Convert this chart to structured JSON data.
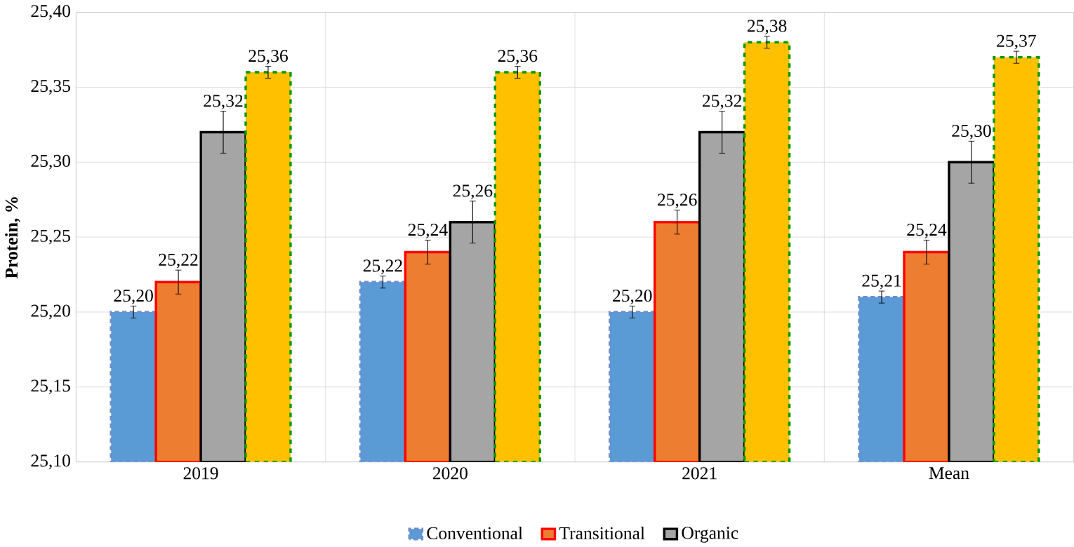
{
  "chart_data": {
    "type": "bar",
    "ylabel": "Protein, %",
    "categories": [
      "2019",
      "2020",
      "2021",
      "Mean"
    ],
    "series": [
      {
        "name": "Conventional",
        "color": "#5b9bd5",
        "values": [
          25.2,
          25.22,
          25.2,
          25.21
        ],
        "errors": [
          0.004,
          0.004,
          0.004,
          0.004
        ],
        "value_labels": [
          "25,20",
          "25,22",
          "25,20",
          "25,21"
        ]
      },
      {
        "name": "Transitional",
        "color": "#ed7d31",
        "values": [
          25.22,
          25.24,
          25.26,
          25.24
        ],
        "errors": [
          0.008,
          0.008,
          0.008,
          0.008
        ],
        "value_labels": [
          "25,22",
          "25,24",
          "25,26",
          "25,24"
        ]
      },
      {
        "name": "Organic",
        "color": "#a5a5a5",
        "values": [
          25.32,
          25.26,
          25.32,
          25.3
        ],
        "errors": [
          0.014,
          0.014,
          0.014,
          0.014
        ],
        "value_labels": [
          "25,32",
          "25,26",
          "25,32",
          "25,30"
        ]
      },
      {
        "color": "#ffc000",
        "values": [
          25.36,
          25.36,
          25.38,
          25.37
        ],
        "errors": [
          0.004,
          0.004,
          0.004,
          0.004
        ],
        "value_labels": [
          "25,36",
          "25,36",
          "25,38",
          "25,37"
        ]
      }
    ],
    "ylim": [
      25.1,
      25.4
    ],
    "yticks": [
      {
        "value": 25.1,
        "label": "25,10"
      },
      {
        "value": 25.15,
        "label": "25,15"
      },
      {
        "value": 25.2,
        "label": "25,20"
      },
      {
        "value": 25.25,
        "label": "25,25"
      },
      {
        "value": 25.3,
        "label": "25,30"
      },
      {
        "value": 25.35,
        "label": "25,35"
      },
      {
        "value": 25.4,
        "label": "25,40"
      }
    ],
    "grid": true,
    "legend": "bottom"
  }
}
